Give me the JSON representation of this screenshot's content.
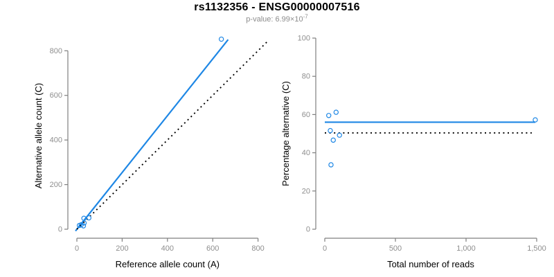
{
  "title": "rs1132356 - ENSG00000007516",
  "subtitle": {
    "text": "p-value: 6.99×10",
    "exponent": "-7"
  },
  "colors": {
    "accent": "#1e87e5",
    "tick_label": "#8e8e8e",
    "axis": "#7f7f7f",
    "axis_label": "#000000",
    "dotted": "#000000"
  },
  "chart_data": [
    {
      "type": "scatter",
      "panel": "left",
      "xlabel": "Reference allele count (A)",
      "ylabel": "Alternative allele count (C)",
      "xlim": [
        0,
        860
      ],
      "ylim": [
        0,
        860
      ],
      "xticks": [
        0,
        200,
        400,
        600,
        800
      ],
      "xtick_labels": [
        "0",
        "200",
        "400",
        "600",
        "800"
      ],
      "yticks": [
        0,
        200,
        400,
        600,
        800
      ],
      "ytick_labels": [
        "0",
        "200",
        "400",
        "600",
        "800"
      ],
      "grid": false,
      "points": [
        [
          11,
          17
        ],
        [
          29,
          15
        ],
        [
          19,
          20
        ],
        [
          32,
          28
        ],
        [
          31,
          49
        ],
        [
          53,
          51
        ],
        [
          638,
          852
        ]
      ],
      "lines": [
        {
          "name": "fitted-allelic-ratio-line",
          "style": "solid",
          "color": "accent",
          "x1": -6,
          "y1": -8,
          "x2": 668,
          "y2": 850
        },
        {
          "name": "identity-line",
          "style": "dotted",
          "color": "#000000",
          "x1": 0,
          "y1": 0,
          "x2": 845,
          "y2": 845
        }
      ]
    },
    {
      "type": "scatter",
      "panel": "right",
      "xlabel": "Total number of reads",
      "ylabel": "Percentage alternative (C)",
      "xlim": [
        0,
        1500
      ],
      "ylim": [
        0,
        100
      ],
      "xticks": [
        0,
        500,
        1000,
        1500
      ],
      "xtick_labels": [
        "0",
        "500",
        "1,000",
        "1,500"
      ],
      "yticks": [
        0,
        20,
        40,
        60,
        80,
        100
      ],
      "ytick_labels": [
        "0",
        "20",
        "40",
        "60",
        "80",
        "100"
      ],
      "grid": false,
      "points": [
        [
          28,
          59.5
        ],
        [
          44,
          33.7
        ],
        [
          39,
          51.6
        ],
        [
          60,
          46.6
        ],
        [
          80,
          61.2
        ],
        [
          104,
          49.2
        ],
        [
          1490,
          57.2
        ]
      ],
      "lines": [
        {
          "name": "mean-percentage-line",
          "style": "solid",
          "color": "accent",
          "x1": 0,
          "y1": 56,
          "x2": 1490,
          "y2": 56
        },
        {
          "name": "expected-50-percent-line",
          "style": "dotted",
          "color": "#000000",
          "x1": 0,
          "y1": 50.4,
          "x2": 1465,
          "y2": 50.4
        }
      ]
    }
  ]
}
